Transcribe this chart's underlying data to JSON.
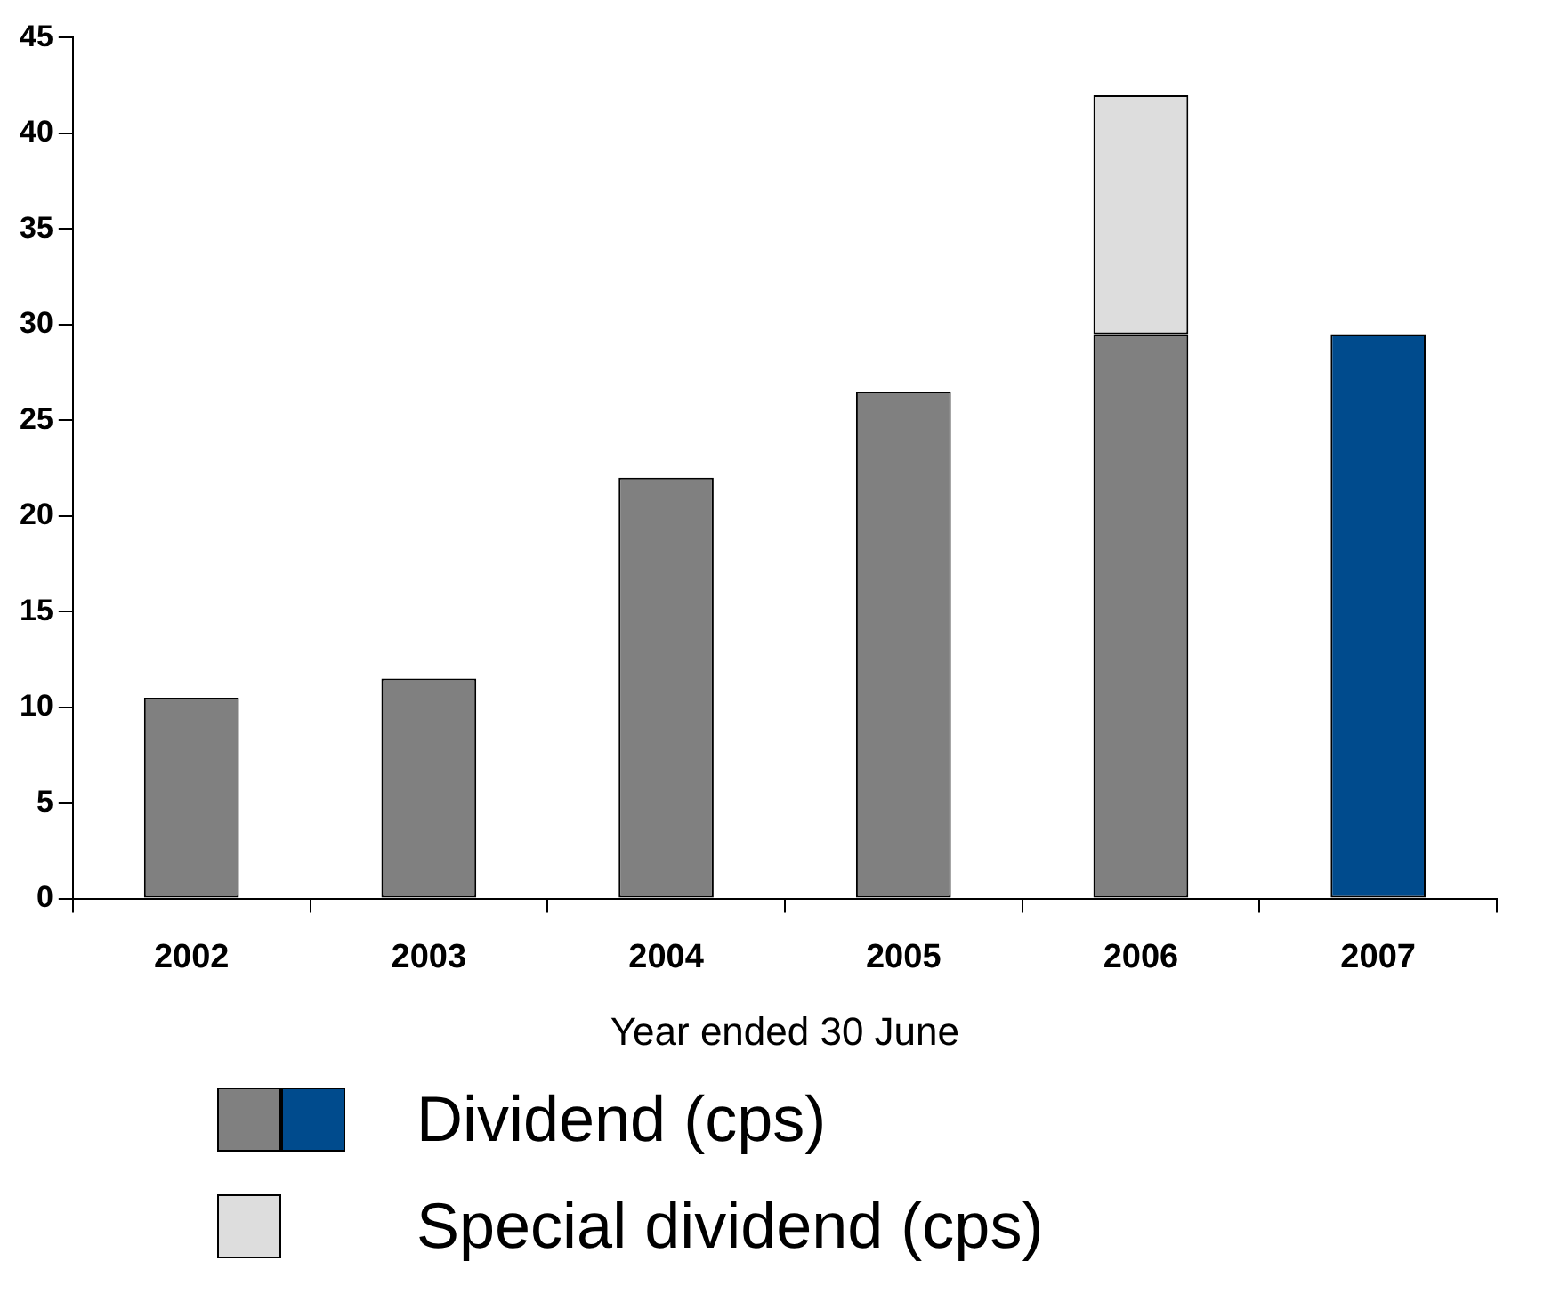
{
  "chart_data": {
    "type": "bar",
    "stacked": true,
    "xlabel": "Year ended 30 June",
    "categories": [
      "2002",
      "2003",
      "2004",
      "2005",
      "2006",
      "2007"
    ],
    "series": [
      {
        "name": "Dividend (cps)",
        "colors": [
          "#808080",
          "#808080",
          "#808080",
          "#808080",
          "#808080",
          "#004b8d"
        ],
        "values": [
          10.5,
          11.5,
          22,
          26.5,
          29.5,
          29.5
        ]
      },
      {
        "name": "Special dividend (cps)",
        "color": "#dddddd",
        "values": [
          null,
          null,
          null,
          null,
          12.5,
          null
        ]
      }
    ],
    "ylim": [
      0,
      45
    ],
    "yticks": [
      0,
      5,
      10,
      15,
      20,
      25,
      30,
      35,
      40,
      45
    ],
    "grid": false,
    "legend": "bottom"
  }
}
